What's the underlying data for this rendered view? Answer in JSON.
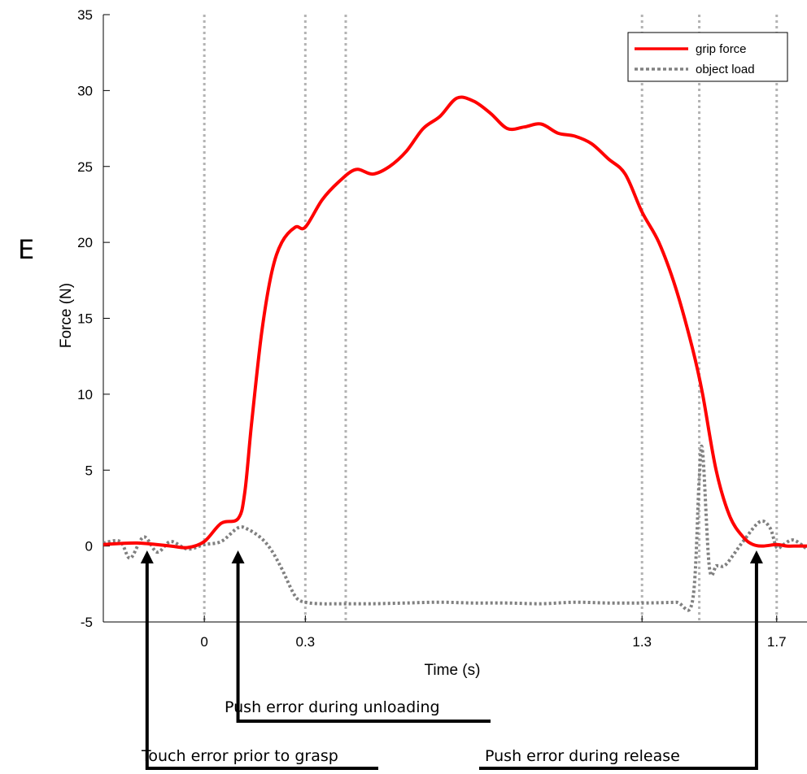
{
  "panel_label": "E",
  "chart_data": {
    "type": "line",
    "title": "",
    "xlabel": "Time (s)",
    "ylabel": "Force (N)",
    "xlim": [
      -0.3,
      1.79
    ],
    "ylim": [
      -5,
      35
    ],
    "y_ticks": [
      -5,
      0,
      5,
      10,
      15,
      20,
      25,
      30,
      35
    ],
    "x_tick_labels": [
      {
        "value": 0,
        "label": "0"
      },
      {
        "value": 0.3,
        "label": "0.3"
      },
      {
        "value": 1.3,
        "label": "1.3"
      },
      {
        "value": 1.7,
        "label": "1.7"
      }
    ],
    "event_lines": [
      0,
      0.3,
      0.42,
      1.3,
      1.47,
      1.7
    ],
    "grid": false,
    "legend_position": "top-right",
    "series": [
      {
        "name": "grip force",
        "color": "#ff0000",
        "style": "solid",
        "x": [
          -0.3,
          -0.2,
          -0.1,
          -0.05,
          0,
          0.05,
          0.1,
          0.12,
          0.14,
          0.17,
          0.2,
          0.23,
          0.27,
          0.3,
          0.35,
          0.4,
          0.45,
          0.5,
          0.55,
          0.6,
          0.65,
          0.7,
          0.75,
          0.8,
          0.85,
          0.9,
          0.95,
          1.0,
          1.05,
          1.1,
          1.15,
          1.2,
          1.25,
          1.3,
          1.35,
          1.4,
          1.45,
          1.48,
          1.52,
          1.56,
          1.6,
          1.63,
          1.66,
          1.7,
          1.73,
          1.76,
          1.79
        ],
        "y": [
          0.1,
          0.2,
          0.0,
          -0.1,
          0.3,
          1.5,
          1.8,
          3.5,
          8,
          14,
          18,
          20,
          21,
          21,
          22.8,
          24,
          24.8,
          24.5,
          25,
          26,
          27.5,
          28.3,
          29.5,
          29.3,
          28.5,
          27.5,
          27.6,
          27.8,
          27.2,
          27,
          26.5,
          25.5,
          24.5,
          22,
          20,
          17,
          13,
          10,
          5,
          2,
          0.6,
          0.1,
          0.0,
          0.1,
          0.0,
          0.0,
          0.0
        ]
      },
      {
        "name": "object load",
        "color": "#808080",
        "style": "dotted",
        "x": [
          -0.3,
          -0.25,
          -0.22,
          -0.18,
          -0.14,
          -0.1,
          -0.05,
          0,
          0.05,
          0.1,
          0.13,
          0.17,
          0.2,
          0.23,
          0.27,
          0.3,
          0.35,
          0.4,
          0.5,
          0.6,
          0.7,
          0.8,
          0.9,
          1.0,
          1.1,
          1.2,
          1.3,
          1.4,
          1.45,
          1.47,
          1.48,
          1.5,
          1.52,
          1.53,
          1.55,
          1.6,
          1.65,
          1.68,
          1.7,
          1.72,
          1.75,
          1.79
        ],
        "y": [
          0.2,
          0.3,
          -0.8,
          0.6,
          -0.4,
          0.3,
          -0.2,
          0.1,
          0.3,
          1.2,
          1.1,
          0.5,
          -0.3,
          -1.5,
          -3.3,
          -3.7,
          -3.8,
          -3.8,
          -3.8,
          -3.75,
          -3.7,
          -3.75,
          -3.75,
          -3.8,
          -3.7,
          -3.75,
          -3.75,
          -3.7,
          -3.6,
          4.5,
          6.2,
          -1.4,
          -1.3,
          -1.3,
          -1.2,
          0.3,
          1.6,
          1.2,
          -0.1,
          0.1,
          0.4,
          -0.2
        ]
      }
    ],
    "annotations": [
      {
        "text": "Push error during unloading",
        "x": 0.1
      },
      {
        "text": "Touch error prior to grasp",
        "x": -0.17
      },
      {
        "text": "Push error during release",
        "x": 1.64
      }
    ]
  }
}
